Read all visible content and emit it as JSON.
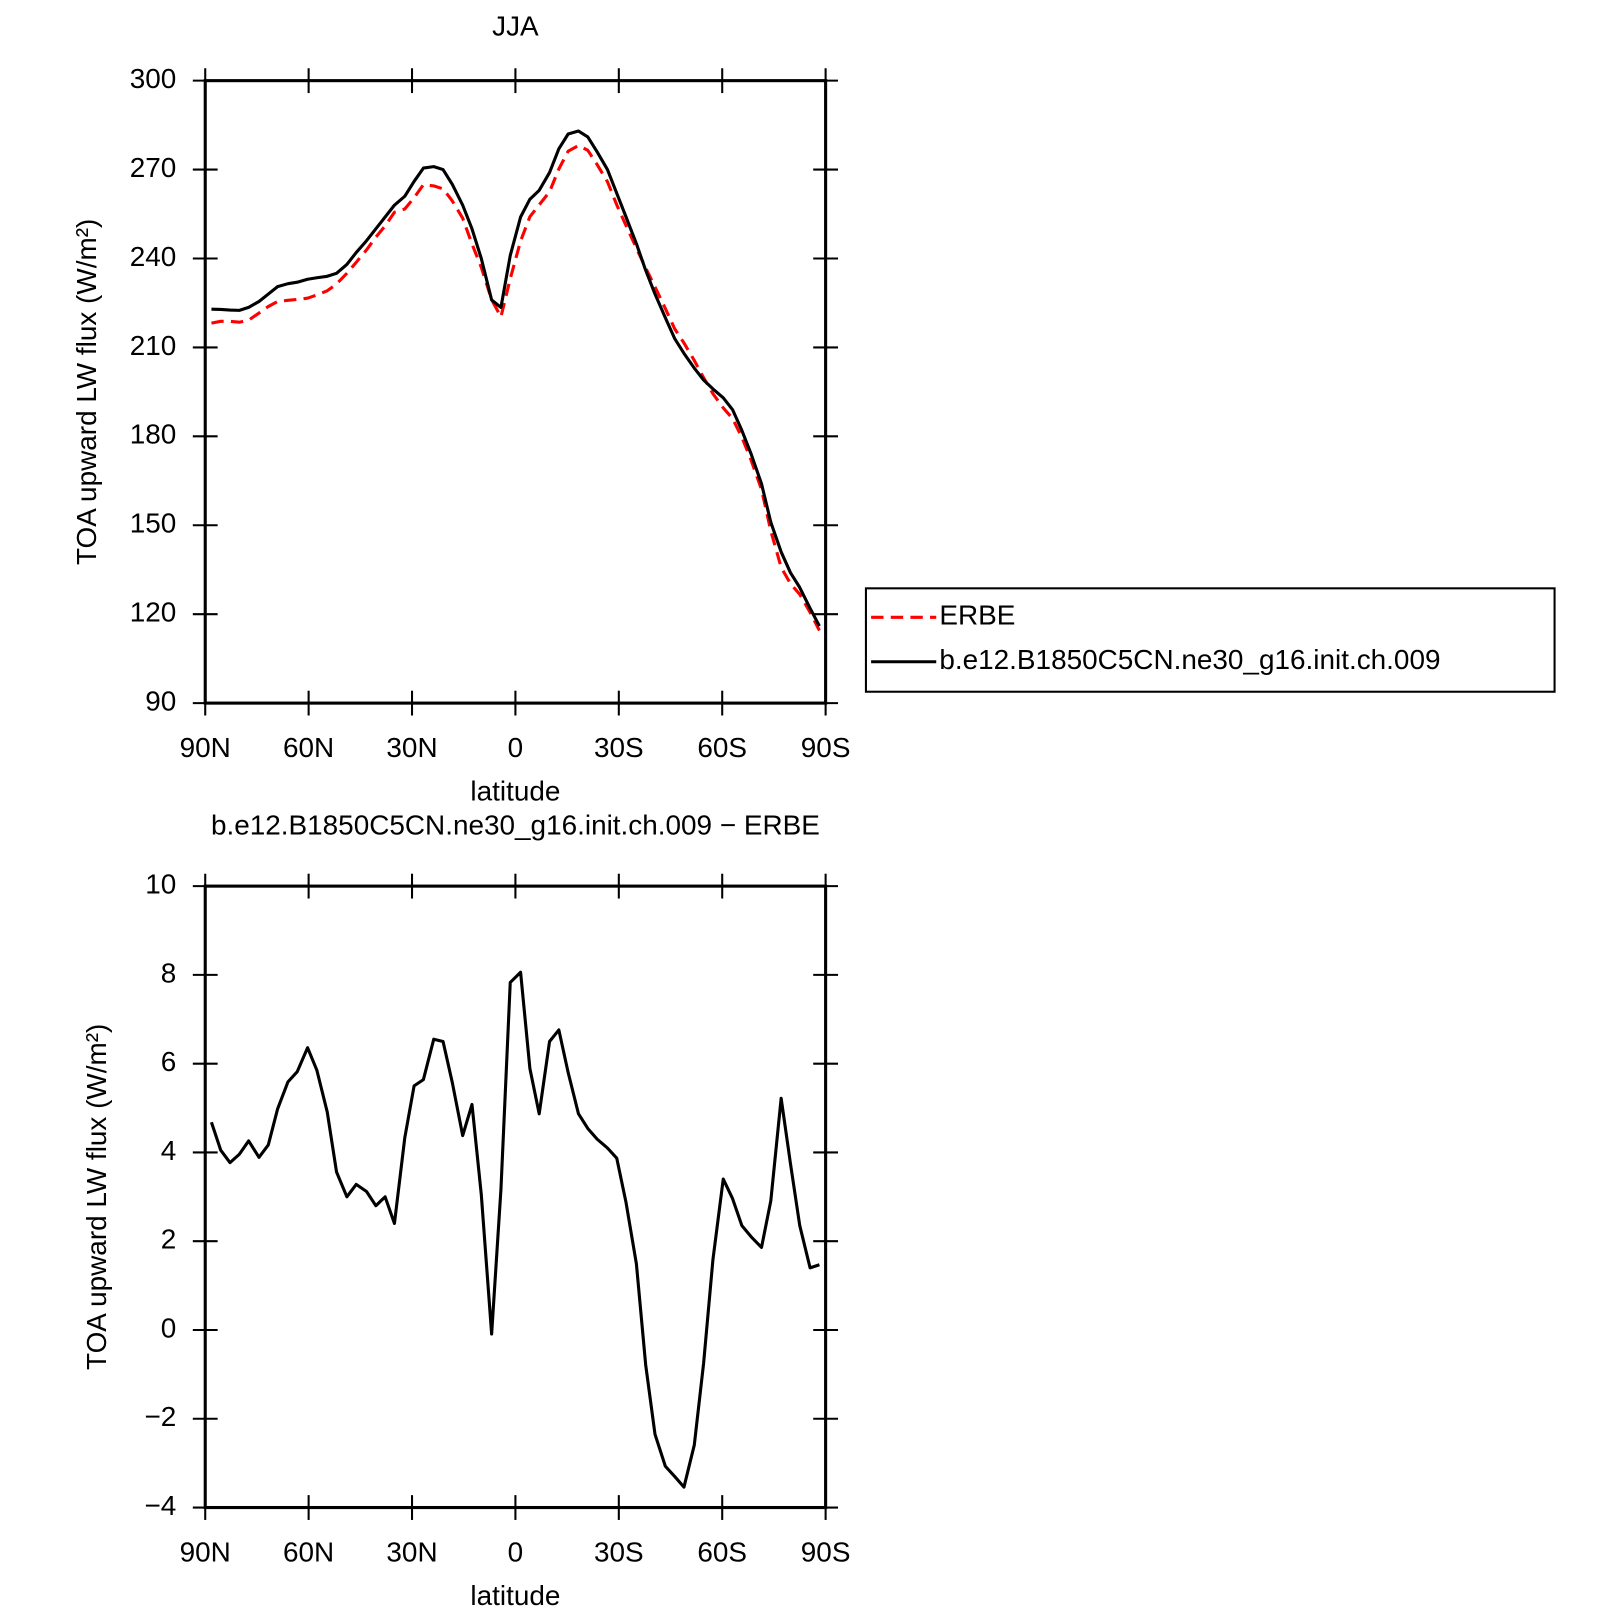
{
  "chart_data": [
    {
      "type": "line",
      "title": "JJA",
      "xlabel": "latitude",
      "ylabel": "TOA upward LW flux (W/m²)",
      "x": [
        88.2,
        85.5,
        82.8,
        80.1,
        77.4,
        74.4,
        71.7,
        69,
        66,
        63.3,
        60.3,
        57.6,
        54.6,
        51.9,
        48.9,
        46.2,
        43.2,
        40.5,
        37.8,
        35.1,
        32.1,
        29.4,
        26.7,
        23.7,
        21,
        18.3,
        15.3,
        12.6,
        9.9,
        6.9,
        4.2,
        1.5,
        -1.5,
        -4.2,
        -6.9,
        -9.9,
        -12.6,
        -15.3,
        -18.3,
        -21,
        -23.7,
        -26.7,
        -29.4,
        -32.1,
        -35.1,
        -37.8,
        -40.5,
        -43.5,
        -46.2,
        -48.9,
        -51.9,
        -54.6,
        -57.3,
        -60.3,
        -63,
        -65.7,
        -68.4,
        -71.4,
        -74.1,
        -77.1,
        -79.8,
        -82.5,
        -85.5,
        -88.2
      ],
      "series": [
        {
          "name": "ERBE",
          "color": "#ff0000",
          "line_style": "dashed",
          "values": [
            218.2,
            218.8,
            218.8,
            218.5,
            219.2,
            221.6,
            223.8,
            225.5,
            225.9,
            226.2,
            226.6,
            227.7,
            229.1,
            231.4,
            235,
            238.7,
            242.9,
            247.2,
            251,
            255.6,
            256.7,
            260.5,
            264.9,
            264.5,
            263.5,
            259.4,
            253.6,
            244.9,
            237,
            226.1,
            220.3,
            233.2,
            245.9,
            254.1,
            258.1,
            262.5,
            270.2,
            276.2,
            278.1,
            276.5,
            271.7,
            265.9,
            258.1,
            251.1,
            243.5,
            236.8,
            230.4,
            223.1,
            216.3,
            211.5,
            205.6,
            199.8,
            194.4,
            189.6,
            186,
            179.7,
            171.9,
            162.1,
            148.1,
            135.8,
            130.3,
            126.7,
            120.6,
            114.5
          ]
        },
        {
          "name": "b.e12.B1850C5CN.ne30_g16.init.ch.009",
          "color": "#000000",
          "line_style": "solid",
          "values": [
            222.9,
            222.8,
            222.6,
            222.5,
            223.5,
            225.5,
            228,
            230.5,
            231.5,
            232,
            233,
            233.5,
            234,
            235,
            238,
            242,
            246,
            250,
            254,
            258,
            261,
            266,
            270.5,
            271,
            270,
            265,
            258,
            250,
            240,
            226,
            223.5,
            241,
            254,
            260,
            263,
            269,
            277,
            282,
            283,
            281,
            276,
            270,
            262,
            254,
            245,
            236,
            228,
            220,
            213,
            208,
            203,
            199,
            196,
            193,
            189,
            182,
            174,
            164,
            151,
            141,
            134,
            129,
            122,
            116
          ]
        }
      ],
      "xlim": [
        90,
        -90
      ],
      "xticks": [
        {
          "value": 90,
          "label": "90N"
        },
        {
          "value": 60,
          "label": "60N"
        },
        {
          "value": 30,
          "label": "30N"
        },
        0,
        {
          "value": -30,
          "label": "30S"
        },
        {
          "value": -60,
          "label": "60S"
        },
        {
          "value": -90,
          "label": "90S"
        }
      ],
      "ylim": [
        90,
        300
      ],
      "yticks": [
        90,
        120,
        150,
        180,
        210,
        240,
        270,
        300
      ],
      "legend": "right"
    },
    {
      "type": "line",
      "title": "b.e12.B1850C5CN.ne30_g16.init.ch.009 − ERBE",
      "xlabel": "latitude",
      "ylabel": "TOA upward LW flux (W/m²)",
      "x": [
        88.2,
        85.5,
        82.8,
        80.1,
        77.4,
        74.4,
        71.7,
        69,
        66,
        63.3,
        60.3,
        57.6,
        54.6,
        51.9,
        48.9,
        46.2,
        43.2,
        40.5,
        37.8,
        35.1,
        32.1,
        29.4,
        26.7,
        23.7,
        21,
        18.3,
        15.3,
        12.6,
        9.9,
        6.9,
        4.2,
        1.5,
        -1.5,
        -4.2,
        -6.9,
        -9.9,
        -12.6,
        -15.3,
        -18.3,
        -21,
        -23.7,
        -26.7,
        -29.4,
        -32.1,
        -35.1,
        -37.8,
        -40.5,
        -43.5,
        -46.2,
        -48.9,
        -51.9,
        -54.6,
        -57.3,
        -60.3,
        -63,
        -65.7,
        -68.4,
        -71.4,
        -74.1,
        -77.1,
        -79.8,
        -82.5,
        -85.5,
        -88.2
      ],
      "color": "#000000",
      "values": [
        4.68,
        4.05,
        3.77,
        3.96,
        4.26,
        3.89,
        4.17,
        4.98,
        5.59,
        5.82,
        6.36,
        5.85,
        4.91,
        3.56,
        3.0,
        3.28,
        3.12,
        2.8,
        3.0,
        2.4,
        4.33,
        5.5,
        5.64,
        6.55,
        6.5,
        5.57,
        4.38,
        5.08,
        3.05,
        -0.09,
        3.17,
        7.83,
        8.06,
        5.89,
        4.87,
        6.5,
        6.76,
        5.8,
        4.87,
        4.54,
        4.3,
        4.1,
        3.87,
        2.87,
        1.49,
        -0.79,
        -2.35,
        -3.07,
        -3.3,
        -3.54,
        -2.59,
        -0.75,
        1.58,
        3.4,
        2.96,
        2.35,
        2.1,
        1.86,
        2.91,
        5.22,
        3.75,
        2.35,
        1.4,
        1.47
      ],
      "xlim": [
        90,
        -90
      ],
      "xticks": [
        {
          "value": 90,
          "label": "90N"
        },
        {
          "value": 60,
          "label": "60N"
        },
        {
          "value": 30,
          "label": "30N"
        },
        0,
        {
          "value": -30,
          "label": "30S"
        },
        {
          "value": -60,
          "label": "60S"
        },
        {
          "value": -90,
          "label": "90S"
        }
      ],
      "ylim": [
        -4,
        10
      ],
      "yticks": [
        {
          "value": -4,
          "label": "−4"
        },
        {
          "value": -2,
          "label": "−2"
        },
        0,
        2,
        4,
        6,
        8,
        10
      ]
    }
  ]
}
